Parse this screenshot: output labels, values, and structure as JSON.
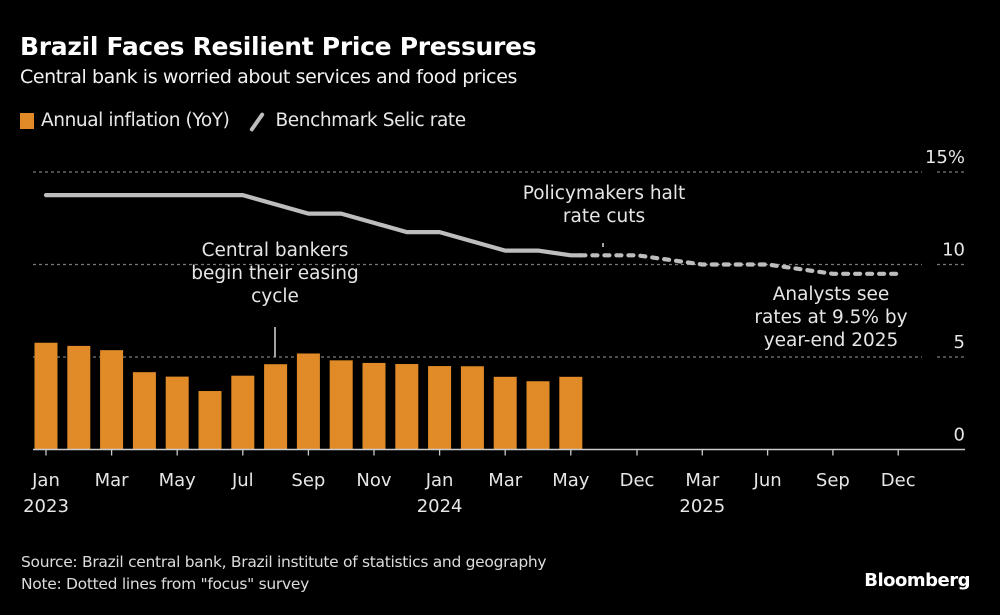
{
  "title": "Brazil Faces Resilient Price Pressures",
  "subtitle": "Central bank is worried about services and food prices",
  "legend": {
    "inflation": "Annual inflation (YoY)",
    "selic": "Benchmark Selic rate"
  },
  "colors": {
    "bars": "#e08b28",
    "line": "#bdbdbd",
    "grid": "#7a7a7a",
    "axis": "#cccccc"
  },
  "annotations": {
    "easing": [
      "Central bankers",
      "begin their easing",
      "cycle"
    ],
    "halt": [
      "Policymakers halt",
      "rate cuts"
    ],
    "analysts": [
      "Analysts see",
      "rates at 9.5% by",
      "year-end 2025"
    ]
  },
  "footer": {
    "source": "Source: Brazil central bank, Brazil institute of statistics and geography",
    "note": "Note: Dotted lines from \"focus\" survey",
    "brand": "Bloomberg"
  },
  "chart_data": {
    "type": "bar",
    "title": "Brazil Faces Resilient Price Pressures",
    "subtitle": "Central bank is worried about services and food prices",
    "xlabel": "",
    "ylabel": "",
    "ylim": [
      0,
      15
    ],
    "yticks": [
      "0",
      "5",
      "10",
      "15%"
    ],
    "grid": true,
    "legend_position": "top-left",
    "x_tick_labels": [
      {
        "label": "Jan",
        "year": "2023"
      },
      {
        "label": "Mar",
        "year": ""
      },
      {
        "label": "May",
        "year": ""
      },
      {
        "label": "Jul",
        "year": ""
      },
      {
        "label": "Sep",
        "year": ""
      },
      {
        "label": "Nov",
        "year": ""
      },
      {
        "label": "Jan",
        "year": "2024"
      },
      {
        "label": "Mar",
        "year": ""
      },
      {
        "label": "May",
        "year": ""
      },
      {
        "label": "Dec",
        "year": ""
      },
      {
        "label": "Mar",
        "year": "2025"
      },
      {
        "label": "Jun",
        "year": ""
      },
      {
        "label": "Sep",
        "year": ""
      },
      {
        "label": "Dec",
        "year": ""
      }
    ],
    "categories": [
      "2023-01",
      "2023-02",
      "2023-03",
      "2023-04",
      "2023-05",
      "2023-06",
      "2023-07",
      "2023-08",
      "2023-09",
      "2023-10",
      "2023-11",
      "2023-12",
      "2024-01",
      "2024-02",
      "2024-03",
      "2024-04",
      "2024-05"
    ],
    "series": [
      {
        "name": "Annual inflation (YoY)",
        "type": "bar",
        "values": [
          5.77,
          5.6,
          5.37,
          4.18,
          3.94,
          3.16,
          3.99,
          4.61,
          5.19,
          4.82,
          4.68,
          4.62,
          4.51,
          4.5,
          3.93,
          3.69,
          3.93
        ]
      },
      {
        "name": "Benchmark Selic rate",
        "type": "line",
        "points": [
          {
            "t": "2023-01",
            "v": 13.75
          },
          {
            "t": "2023-07",
            "v": 13.75
          },
          {
            "t": "2023-08",
            "v": 13.25
          },
          {
            "t": "2023-09",
            "v": 12.75
          },
          {
            "t": "2023-10",
            "v": 12.75
          },
          {
            "t": "2023-11",
            "v": 12.25
          },
          {
            "t": "2023-12",
            "v": 11.75
          },
          {
            "t": "2024-01",
            "v": 11.75
          },
          {
            "t": "2024-02",
            "v": 11.25
          },
          {
            "t": "2024-03",
            "v": 10.75
          },
          {
            "t": "2024-04",
            "v": 10.75
          },
          {
            "t": "2024-05",
            "v": 10.5
          },
          {
            "t": "2024-06",
            "v": 10.5
          }
        ]
      },
      {
        "name": "Selic forecast (Focus survey)",
        "type": "line",
        "style": "dotted",
        "points": [
          {
            "t": "2024-06",
            "v": 10.5
          },
          {
            "t": "2024-12",
            "v": 10.5
          },
          {
            "t": "2025-03",
            "v": 10.0
          },
          {
            "t": "2025-06",
            "v": 10.0
          },
          {
            "t": "2025-09",
            "v": 9.5
          },
          {
            "t": "2025-12",
            "v": 9.5
          }
        ]
      }
    ]
  }
}
